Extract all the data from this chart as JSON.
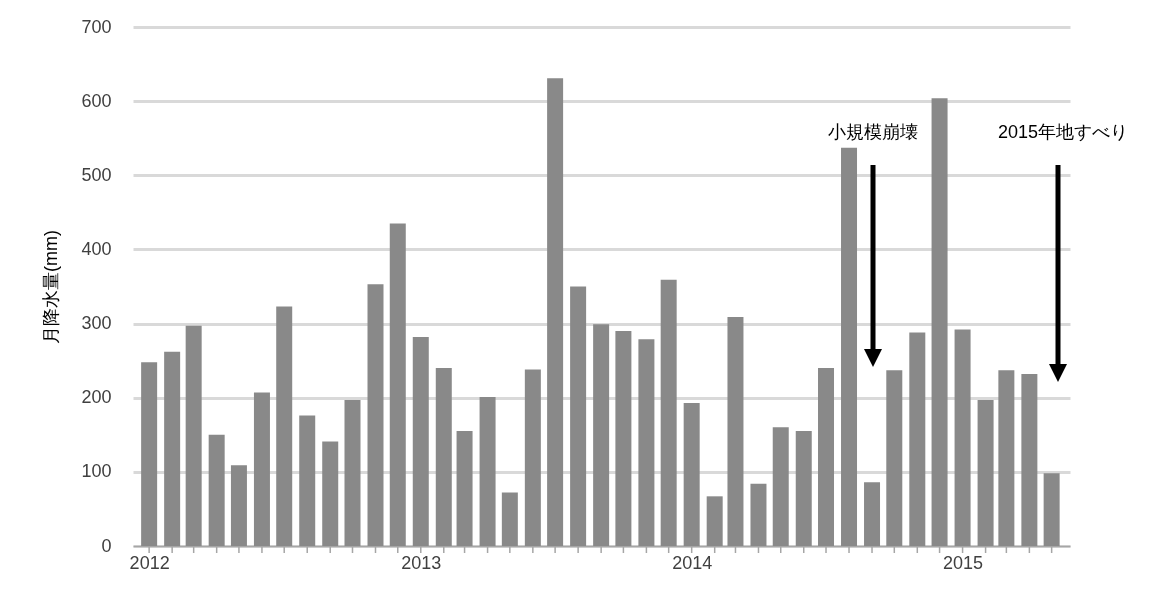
{
  "chart_data": {
    "type": "bar",
    "ylabel": "月降水量(mm)",
    "color": "#898989",
    "x": [
      "2012-01",
      "2012-02",
      "2012-03",
      "2012-04",
      "2012-05",
      "2012-06",
      "2012-07",
      "2012-08",
      "2012-09",
      "2012-10",
      "2012-11",
      "2012-12",
      "2013-01",
      "2013-02",
      "2013-03",
      "2013-04",
      "2013-05",
      "2013-06",
      "2013-07",
      "2013-08",
      "2013-09",
      "2013-10",
      "2013-11",
      "2013-12",
      "2014-01",
      "2014-02",
      "2014-03",
      "2014-04",
      "2014-05",
      "2014-06",
      "2014-07",
      "2014-08",
      "2014-09",
      "2014-10",
      "2014-11",
      "2014-12",
      "2015-01",
      "2015-02",
      "2015-03",
      "2015-04",
      "2015-05"
    ],
    "values": [
      248,
      262,
      297,
      150,
      109,
      207,
      323,
      176,
      141,
      197,
      353,
      435,
      282,
      240,
      155,
      201,
      72,
      238,
      631,
      350,
      299,
      290,
      279,
      359,
      193,
      67,
      309,
      84,
      160,
      155,
      240,
      537,
      86,
      237,
      288,
      604,
      292,
      197,
      237,
      232,
      98
    ],
    "xlim": [
      "2011-12-17",
      "2015-05-19"
    ],
    "xticks": [
      {
        "value": "2012-01",
        "label": "2012"
      },
      {
        "value": "2012-02",
        "label": null
      },
      {
        "value": "2012-03",
        "label": null
      },
      {
        "value": "2012-04",
        "label": null
      },
      {
        "value": "2012-05",
        "label": null
      },
      {
        "value": "2012-06",
        "label": null
      },
      {
        "value": "2012-07",
        "label": null
      },
      {
        "value": "2012-08",
        "label": null
      },
      {
        "value": "2012-09",
        "label": null
      },
      {
        "value": "2012-10",
        "label": null
      },
      {
        "value": "2012-11",
        "label": null
      },
      {
        "value": "2012-12",
        "label": null
      },
      {
        "value": "2013-01",
        "label": "2013"
      },
      {
        "value": "2013-02",
        "label": null
      },
      {
        "value": "2013-03",
        "label": null
      },
      {
        "value": "2013-04",
        "label": null
      },
      {
        "value": "2013-05",
        "label": null
      },
      {
        "value": "2013-06",
        "label": null
      },
      {
        "value": "2013-07",
        "label": null
      },
      {
        "value": "2013-08",
        "label": null
      },
      {
        "value": "2013-09",
        "label": null
      },
      {
        "value": "2013-10",
        "label": null
      },
      {
        "value": "2013-11",
        "label": null
      },
      {
        "value": "2013-12",
        "label": null
      },
      {
        "value": "2014-01",
        "label": "2014"
      },
      {
        "value": "2014-02",
        "label": null
      },
      {
        "value": "2014-03",
        "label": null
      },
      {
        "value": "2014-04",
        "label": null
      },
      {
        "value": "2014-05",
        "label": null
      },
      {
        "value": "2014-06",
        "label": null
      },
      {
        "value": "2014-07",
        "label": null
      },
      {
        "value": "2014-08",
        "label": null
      },
      {
        "value": "2014-09",
        "label": null
      },
      {
        "value": "2014-10",
        "label": null
      },
      {
        "value": "2014-11",
        "label": null
      },
      {
        "value": "2014-12",
        "label": null
      },
      {
        "value": "2015-01",
        "label": "2015"
      },
      {
        "value": "2015-02",
        "label": null
      },
      {
        "value": "2015-03",
        "label": null
      },
      {
        "value": "2015-04",
        "label": null
      },
      {
        "value": "2015-05",
        "label": null
      }
    ],
    "ylim": [
      0,
      700
    ],
    "yticks": [
      0,
      100,
      200,
      300,
      400,
      500,
      600,
      700
    ],
    "grid": "y",
    "annotations": [
      "小規模崩壊",
      "2015年地すべり"
    ]
  }
}
